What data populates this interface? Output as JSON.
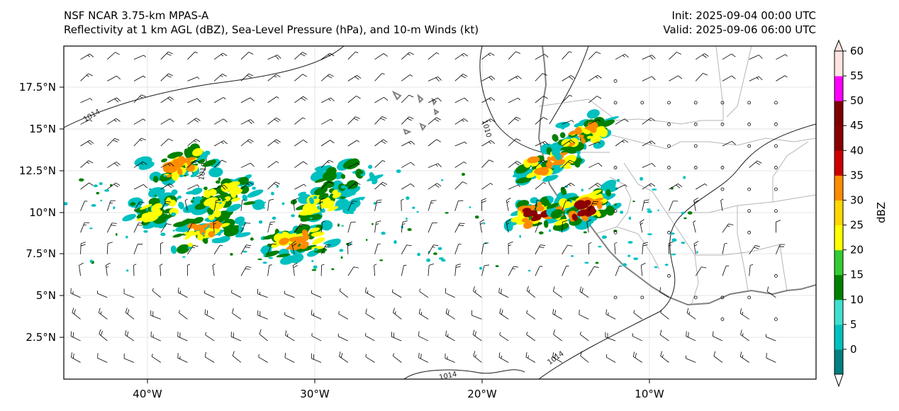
{
  "header": {
    "model": "NSF NCAR 3.75-km MPAS-A",
    "fields": "Reflectivity at 1 km AGL (dBZ), Sea-Level Pressure (hPa), and 10-m Winds (kt)",
    "init": "Init: 2025-09-04 00:00 UTC",
    "valid": "Valid: 2025-09-06 06:00 UTC"
  },
  "axes": {
    "lon_range": [
      -45,
      0
    ],
    "lat_range": [
      0,
      20
    ],
    "x_ticks": [
      "40°W",
      "30°W",
      "20°W",
      "10°W"
    ],
    "y_ticks": [
      "17.5°N",
      "15°N",
      "12.5°N",
      "10°N",
      "7.5°N",
      "5°N",
      "2.5°N"
    ]
  },
  "colorbar": {
    "label": "dBZ",
    "ticks": [
      "0",
      "5",
      "10",
      "15",
      "20",
      "25",
      "30",
      "35",
      "40",
      "45",
      "50",
      "55",
      "60"
    ],
    "colors": [
      "#008080",
      "#00c0c0",
      "#40e0d0",
      "#008000",
      "#32cd32",
      "#ffff00",
      "#ffd700",
      "#ff8c00",
      "#cc0000",
      "#8b0000",
      "#800000",
      "#ff00ff",
      "#ffe4e1"
    ]
  },
  "contours": {
    "labels": [
      "1014",
      "1010",
      "1010",
      "1014",
      "1014"
    ]
  },
  "map_data": {
    "reflectivity_cells": [
      {
        "lon": -39.5,
        "lat": 10.2,
        "dbz": 30
      },
      {
        "lon": -38.0,
        "lat": 12.8,
        "dbz": 40
      },
      {
        "lon": -36.5,
        "lat": 9.0,
        "dbz": 35
      },
      {
        "lon": -35.5,
        "lat": 11.0,
        "dbz": 25
      },
      {
        "lon": -31.0,
        "lat": 8.2,
        "dbz": 35
      },
      {
        "lon": -29.5,
        "lat": 10.5,
        "dbz": 30
      },
      {
        "lon": -28.5,
        "lat": 12.0,
        "dbz": 20
      },
      {
        "lon": -16.5,
        "lat": 10.0,
        "dbz": 50
      },
      {
        "lon": -14.0,
        "lat": 10.2,
        "dbz": 45
      },
      {
        "lon": -16.0,
        "lat": 13.0,
        "dbz": 35
      },
      {
        "lon": -14.0,
        "lat": 14.7,
        "dbz": 40
      }
    ]
  }
}
